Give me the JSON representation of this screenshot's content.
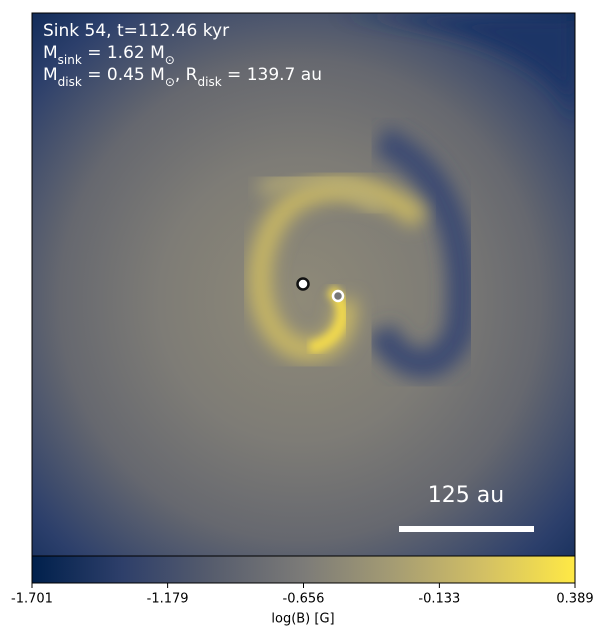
{
  "chart_data": {
    "type": "image",
    "title_lines": [
      [
        "Sink 54, t=112.46 kyr"
      ],
      [
        "M",
        "sink",
        " = 1.62 M",
        "⊙"
      ],
      [
        "M",
        "disk",
        " = 0.45 M",
        "⊙",
        ", R",
        "disk",
        " = 139.7 au"
      ]
    ],
    "scale_bar_label": "125 au",
    "colorbar": {
      "label": "log(B) [G]",
      "clim": [
        -1.701,
        0.389
      ],
      "ticks": [
        -1.701,
        -1.179,
        -0.656,
        -0.133,
        0.389
      ],
      "colors": [
        "#00204c",
        "#2e3f6a",
        "#575d6d",
        "#7c7b78",
        "#a59c73",
        "#d3c064",
        "#ffe945"
      ]
    }
  }
}
